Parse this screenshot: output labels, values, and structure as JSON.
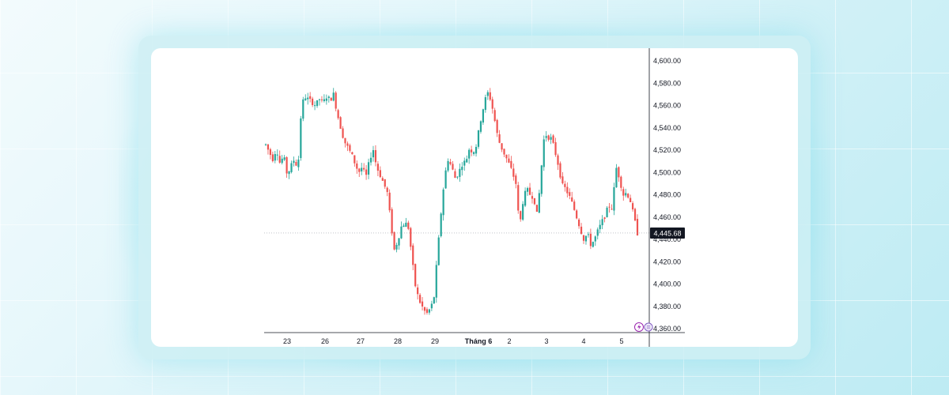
{
  "chart_data": {
    "type": "candlestick",
    "title": "",
    "xlabel": "",
    "ylabel": "",
    "ylim": [
      4360,
      4600
    ],
    "y_ticks": [
      "4,600.00",
      "4,580.00",
      "4,560.00",
      "4,540.00",
      "4,520.00",
      "4,500.00",
      "4,480.00",
      "4,460.00",
      "4,440.00",
      "4,420.00",
      "4,400.00",
      "4,380.00",
      "4,360.00"
    ],
    "y_tick_values": [
      4600,
      4580,
      4560,
      4540,
      4520,
      4500,
      4480,
      4460,
      4440,
      4420,
      4400,
      4380,
      4360
    ],
    "x_ticks": [
      {
        "label": "23",
        "bold": false
      },
      {
        "label": "26",
        "bold": false
      },
      {
        "label": "27",
        "bold": false
      },
      {
        "label": "28",
        "bold": false
      },
      {
        "label": "29",
        "bold": false
      },
      {
        "label": "Tháng 6",
        "bold": true
      },
      {
        "label": "2",
        "bold": false
      },
      {
        "label": "3",
        "bold": false
      },
      {
        "label": "4",
        "bold": false
      },
      {
        "label": "5",
        "bold": false
      }
    ],
    "price_path": [
      4525,
      4518,
      4512,
      4522,
      4508,
      4515,
      4498,
      4505,
      4512,
      4503,
      4560,
      4568,
      4565,
      4563,
      4560,
      4566,
      4562,
      4568,
      4565,
      4570,
      4553,
      4540,
      4528,
      4522,
      4516,
      4508,
      4500,
      4505,
      4495,
      4510,
      4522,
      4505,
      4498,
      4490,
      4482,
      4455,
      4430,
      4440,
      4452,
      4455,
      4450,
      4420,
      4395,
      4385,
      4378,
      4373,
      4378,
      4385,
      4425,
      4462,
      4495,
      4512,
      4505,
      4495,
      4500,
      4508,
      4510,
      4522,
      4518,
      4525,
      4545,
      4560,
      4572,
      4565,
      4548,
      4530,
      4522,
      4515,
      4508,
      4500,
      4490,
      4450,
      4475,
      4485,
      4480,
      4478,
      4460,
      4500,
      4535,
      4532,
      4530,
      4518,
      4505,
      4488,
      4485,
      4478,
      4470,
      4460,
      4450,
      4440,
      4445,
      4435,
      4440,
      4448,
      4455,
      4462,
      4470,
      4468,
      4505,
      4495,
      4480,
      4482,
      4475,
      4460,
      4445.68
    ],
    "current_price": 4445.68,
    "current_price_label": "4,445.68",
    "colors": {
      "up": "#26a69a",
      "down": "#ef5350",
      "axis": "#131722",
      "price_label_bg": "#131722"
    }
  },
  "icons": [
    "lightning-icon",
    "data-icon"
  ]
}
